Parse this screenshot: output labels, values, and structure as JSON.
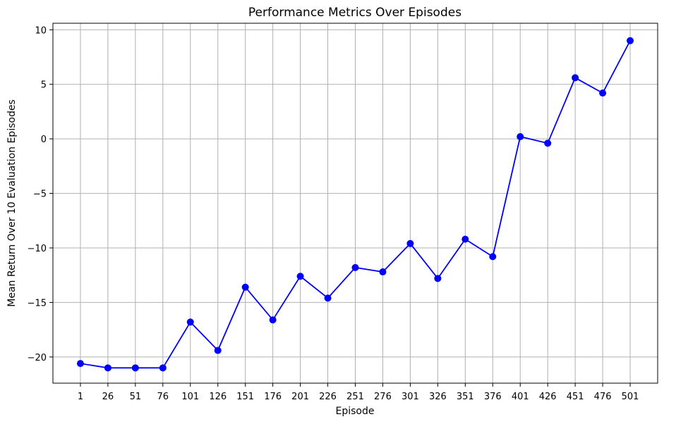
{
  "chart_data": {
    "type": "line",
    "title": "Performance Metrics Over Episodes",
    "xlabel": "Episode",
    "ylabel": "Mean Return Over 10 Evaluation Episodes",
    "x": [
      1,
      26,
      51,
      76,
      101,
      126,
      151,
      176,
      201,
      226,
      251,
      276,
      301,
      326,
      351,
      376,
      401,
      426,
      451,
      476,
      501
    ],
    "xticks": [
      "1",
      "26",
      "51",
      "76",
      "101",
      "126",
      "151",
      "176",
      "201",
      "226",
      "251",
      "276",
      "301",
      "326",
      "351",
      "376",
      "401",
      "426",
      "451",
      "476",
      "501"
    ],
    "yticks": [
      -20,
      -15,
      -10,
      -5,
      0,
      5,
      10
    ],
    "ytick_labels": [
      "−20",
      "−15",
      "−10",
      "−5",
      "0",
      "5",
      "10"
    ],
    "xlim": [
      -24,
      526
    ],
    "ylim": [
      -22.4,
      10.6
    ],
    "grid": true,
    "series": [
      {
        "color": "#0000ff",
        "marker": "circle",
        "values": [
          -20.6,
          -21.0,
          -21.0,
          -21.0,
          -16.8,
          -19.4,
          -13.6,
          -16.6,
          -12.6,
          -14.6,
          -11.8,
          -12.2,
          -9.6,
          -12.8,
          -9.2,
          -10.8,
          0.2,
          -0.4,
          5.6,
          4.2,
          9.0
        ]
      }
    ]
  }
}
